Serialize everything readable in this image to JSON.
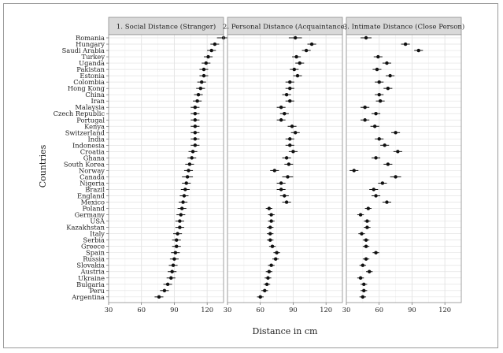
{
  "chart_data": {
    "type": "scatter",
    "subtype": "dot plot with horizontal error bars, faceted",
    "ylabel": "Countries",
    "xlabel": "Distance in cm",
    "xlim": [
      30,
      135
    ],
    "xticks": [
      30,
      60,
      90,
      120
    ],
    "grid": true,
    "legend": "none",
    "colors": {
      "panel_header_bg": "#d9d9d9",
      "point": "#111111",
      "grid": "#e3e3e3",
      "panel_border": "#8c8c8c"
    },
    "countries": [
      "Romania",
      "Hungary",
      "Saudi Arabia",
      "Turkey",
      "Uganda",
      "Pakistan",
      "Estonia",
      "Colombia",
      "Hong Kong",
      "China",
      "Iran",
      "Malaysia",
      "Czech Republic",
      "Portugal",
      "Kenya",
      "Switzerland",
      "India",
      "Indonesia",
      "Croatia",
      "Ghana",
      "South Korea",
      "Norway",
      "Canada",
      "Nigeria",
      "Brazil",
      "England",
      "Mexico",
      "Poland",
      "Germany",
      "USA",
      "Kazakhstan",
      "Italy",
      "Serbia",
      "Greece",
      "Spain",
      "Russia",
      "Slovakia",
      "Austria",
      "Ukraine",
      "Bulgaria",
      "Peru",
      "Argentina"
    ],
    "panels": [
      {
        "title": "1. Social Distance (Stranger)",
        "values": [
          135,
          127,
          124,
          121,
          119,
          117,
          117,
          115,
          114,
          112,
          111,
          109,
          109,
          109,
          109,
          109,
          109,
          109,
          107,
          106,
          104,
          103,
          102,
          101,
          100,
          99,
          98,
          97,
          96,
          95,
          95,
          93,
          92,
          92,
          91,
          90,
          89,
          88,
          87,
          84,
          81,
          76
        ],
        "error": [
          6,
          4,
          4,
          4,
          4,
          4,
          4,
          4,
          4,
          4,
          4,
          4,
          4,
          4,
          4,
          4,
          4,
          4,
          4,
          4,
          4,
          4,
          5,
          4,
          4,
          4,
          4,
          4,
          4,
          4,
          4,
          4,
          4,
          4,
          4,
          4,
          4,
          4,
          4,
          4,
          4,
          4
        ]
      },
      {
        "title": "2. Personal Distance (Acquaintance)",
        "values": [
          92,
          107,
          102,
          93,
          96,
          91,
          94,
          87,
          87,
          84,
          87,
          79,
          82,
          79,
          89,
          92,
          87,
          87,
          90,
          84,
          86,
          73,
          85,
          79,
          79,
          82,
          84,
          68,
          70,
          70,
          69,
          69,
          69,
          71,
          75,
          74,
          70,
          68,
          67,
          66,
          64,
          60
        ],
        "error": [
          6,
          4,
          4,
          4,
          4,
          4,
          4,
          4,
          4,
          4,
          4,
          4,
          4,
          4,
          4,
          4,
          4,
          4,
          4,
          4,
          4,
          4,
          5,
          4,
          4,
          4,
          4,
          3,
          3,
          3,
          3,
          3,
          3,
          3,
          3,
          3,
          3,
          3,
          3,
          3,
          3,
          3
        ]
      },
      {
        "title": "3. Intimate Distance (Close Person)",
        "values": [
          48,
          84,
          96,
          59,
          67,
          58,
          70,
          60,
          68,
          60,
          61,
          47,
          57,
          47,
          56,
          75,
          60,
          65,
          77,
          57,
          68,
          37,
          75,
          63,
          55,
          57,
          67,
          50,
          43,
          49,
          49,
          44,
          48,
          48,
          57,
          48,
          45,
          51,
          43,
          46,
          46,
          45
        ],
        "error": [
          5,
          4,
          4,
          4,
          4,
          4,
          4,
          4,
          4,
          4,
          4,
          4,
          4,
          4,
          4,
          4,
          4,
          4,
          4,
          4,
          4,
          4,
          5,
          4,
          4,
          4,
          4,
          3,
          3,
          3,
          3,
          3,
          3,
          3,
          3,
          3,
          3,
          3,
          3,
          3,
          3,
          3
        ]
      }
    ]
  }
}
